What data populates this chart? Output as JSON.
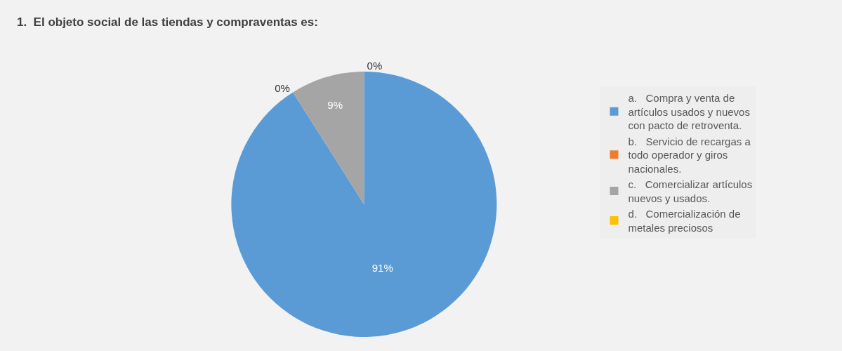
{
  "chart_data": {
    "type": "pie",
    "title": "1.  El objeto social de las tiendas y compraventas es:",
    "categories": [
      "a.   Compra y venta de artículos usados y nuevos con pacto de retroventa.",
      "b.   Servicio de recargas a todo operador y giros nacionales.",
      "c.   Comercializar artículos nuevos y usados.",
      "d.   Comercialización de metales preciosos"
    ],
    "values": [
      91,
      0,
      9,
      0
    ],
    "colors": [
      "#5b9bd5",
      "#ed7d31",
      "#a5a5a5",
      "#ffc000"
    ],
    "value_labels": [
      "91%",
      "0%",
      "9%",
      "0%"
    ],
    "legend": "right"
  }
}
